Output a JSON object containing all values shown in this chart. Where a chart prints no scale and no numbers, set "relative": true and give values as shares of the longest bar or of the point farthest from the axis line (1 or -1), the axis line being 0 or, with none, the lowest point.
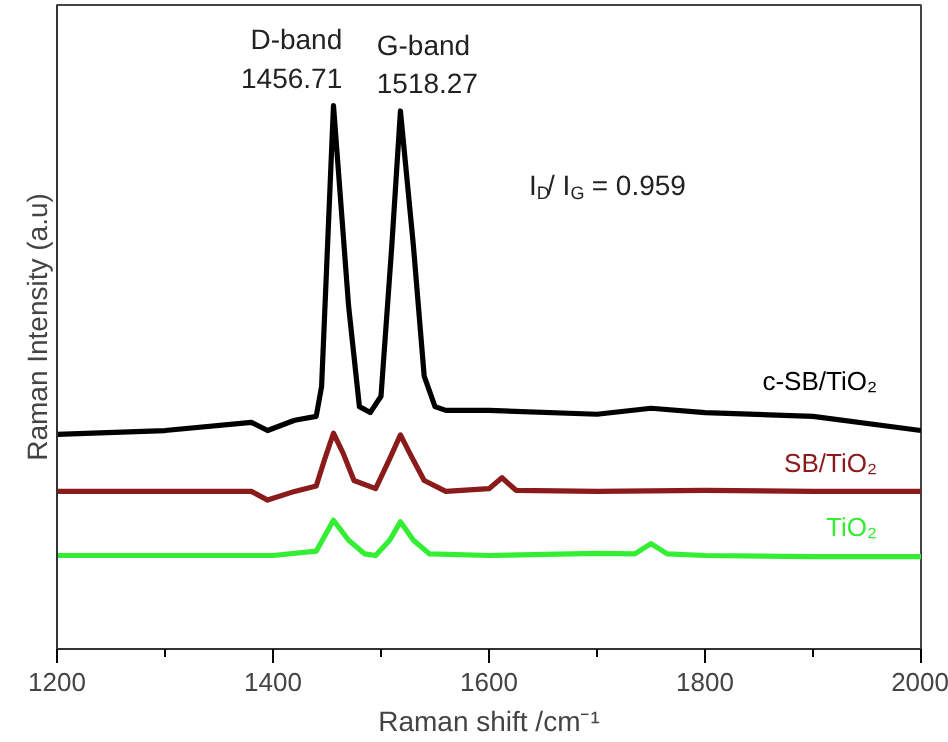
{
  "chart_data": {
    "type": "line",
    "relative": true,
    "xlabel": "Raman shift /cm⁻¹",
    "ylabel": "Raman Intensity (a.u)",
    "xlim": [
      1200,
      2000
    ],
    "xticks": [
      1200,
      1400,
      1600,
      1800,
      2000
    ],
    "grid": false,
    "marker": "none",
    "line_style": "solid",
    "annotations": [
      {
        "text": "D-band\n1456.71",
        "x": 1456.71,
        "y": 1.0
      },
      {
        "text": "G-band\n1518.27",
        "x": 1518.27,
        "y": 0.99
      },
      "I$_{D}$/ I$_{G}$ = 0.959"
    ],
    "series": [
      {
        "name": "c-SB/TiO₂",
        "color": "#000000",
        "x": [
          1200,
          1300,
          1380,
          1395,
          1420,
          1440,
          1445,
          1456,
          1470,
          1480,
          1490,
          1500,
          1510,
          1518,
          1530,
          1540,
          1550,
          1560,
          1600,
          1700,
          1750,
          1800,
          1900,
          2000
        ],
        "values": [
          0.395,
          0.402,
          0.417,
          0.402,
          0.421,
          0.428,
          0.483,
          1.0,
          0.631,
          0.446,
          0.435,
          0.465,
          0.742,
          0.99,
          0.742,
          0.502,
          0.446,
          0.439,
          0.439,
          0.432,
          0.443,
          0.435,
          0.428,
          0.402
        ]
      },
      {
        "name": "SB/TiO₂",
        "color": "#8b1a1a",
        "x": [
          1200,
          1380,
          1395,
          1420,
          1440,
          1448,
          1456,
          1465,
          1475,
          1495,
          1508,
          1518,
          1528,
          1540,
          1560,
          1600,
          1612,
          1625,
          1700,
          1800,
          1900,
          2000
        ],
        "values": [
          0.29,
          0.29,
          0.274,
          0.29,
          0.3,
          0.35,
          0.397,
          0.36,
          0.31,
          0.295,
          0.35,
          0.394,
          0.355,
          0.31,
          0.29,
          0.295,
          0.315,
          0.292,
          0.29,
          0.292,
          0.29,
          0.29
        ]
      },
      {
        "name": "TiO₂",
        "color": "#33ee33",
        "x": [
          1200,
          1300,
          1400,
          1440,
          1456,
          1470,
          1485,
          1495,
          1508,
          1518,
          1530,
          1545,
          1600,
          1700,
          1735,
          1750,
          1765,
          1800,
          1900,
          2000
        ],
        "values": [
          0.172,
          0.172,
          0.172,
          0.18,
          0.237,
          0.2,
          0.175,
          0.172,
          0.2,
          0.234,
          0.2,
          0.175,
          0.172,
          0.176,
          0.175,
          0.194,
          0.175,
          0.172,
          0.17,
          0.17
        ]
      }
    ]
  }
}
